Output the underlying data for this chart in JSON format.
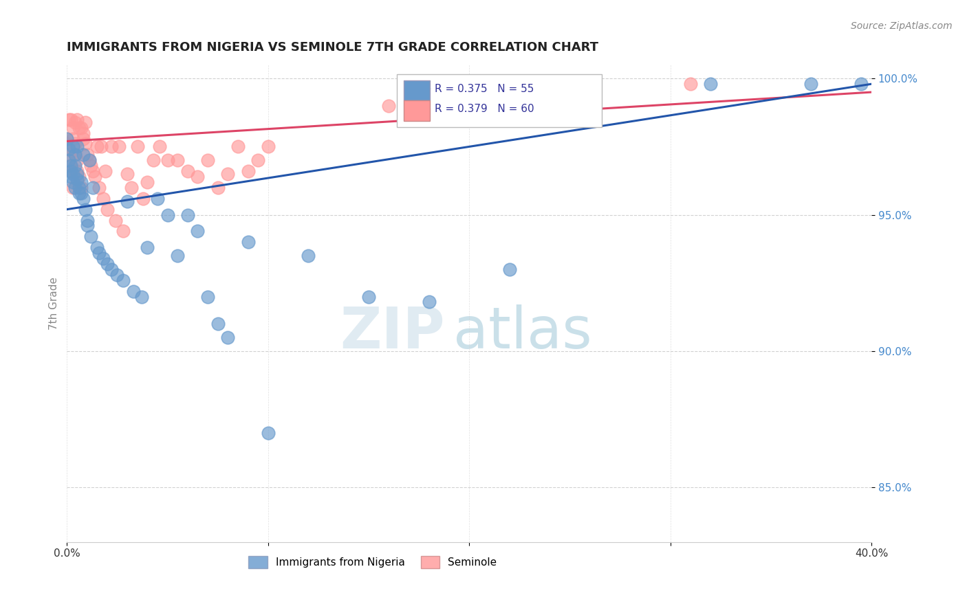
{
  "title": "IMMIGRANTS FROM NIGERIA VS SEMINOLE 7TH GRADE CORRELATION CHART",
  "source": "Source: ZipAtlas.com",
  "ylabel": "7th Grade",
  "legend_blue": "R = 0.375   N = 55",
  "legend_pink": "R = 0.379   N = 60",
  "legend_label_blue": "Immigrants from Nigeria",
  "legend_label_pink": "Seminole",
  "blue_color": "#6699CC",
  "pink_color": "#FF9999",
  "line_blue": "#2255AA",
  "line_pink": "#DD4466",
  "blue_x": [
    0.0,
    0.001,
    0.001,
    0.002,
    0.002,
    0.002,
    0.003,
    0.003,
    0.003,
    0.004,
    0.004,
    0.004,
    0.005,
    0.005,
    0.005,
    0.006,
    0.006,
    0.007,
    0.007,
    0.008,
    0.008,
    0.009,
    0.01,
    0.01,
    0.011,
    0.012,
    0.013,
    0.015,
    0.016,
    0.018,
    0.02,
    0.022,
    0.025,
    0.028,
    0.03,
    0.033,
    0.037,
    0.04,
    0.045,
    0.05,
    0.055,
    0.06,
    0.065,
    0.07,
    0.075,
    0.08,
    0.09,
    0.1,
    0.12,
    0.15,
    0.18,
    0.22,
    0.32,
    0.37,
    0.395
  ],
  "blue_y": [
    0.978,
    0.974,
    0.97,
    0.968,
    0.966,
    0.964,
    0.975,
    0.965,
    0.962,
    0.96,
    0.972,
    0.968,
    0.965,
    0.963,
    0.975,
    0.96,
    0.958,
    0.962,
    0.958,
    0.956,
    0.972,
    0.952,
    0.948,
    0.946,
    0.97,
    0.942,
    0.96,
    0.938,
    0.936,
    0.934,
    0.932,
    0.93,
    0.928,
    0.926,
    0.955,
    0.922,
    0.92,
    0.938,
    0.956,
    0.95,
    0.935,
    0.95,
    0.944,
    0.92,
    0.91,
    0.905,
    0.94,
    0.87,
    0.935,
    0.92,
    0.918,
    0.93,
    0.998,
    0.998,
    0.998
  ],
  "pink_x": [
    0.0,
    0.0,
    0.001,
    0.001,
    0.001,
    0.002,
    0.002,
    0.002,
    0.003,
    0.003,
    0.003,
    0.004,
    0.004,
    0.004,
    0.005,
    0.005,
    0.005,
    0.006,
    0.006,
    0.007,
    0.007,
    0.008,
    0.008,
    0.009,
    0.009,
    0.01,
    0.011,
    0.012,
    0.013,
    0.014,
    0.015,
    0.016,
    0.017,
    0.018,
    0.019,
    0.02,
    0.022,
    0.024,
    0.026,
    0.028,
    0.03,
    0.032,
    0.035,
    0.038,
    0.04,
    0.043,
    0.046,
    0.05,
    0.055,
    0.06,
    0.065,
    0.07,
    0.075,
    0.08,
    0.085,
    0.09,
    0.095,
    0.1,
    0.16,
    0.31
  ],
  "pink_y": [
    0.978,
    0.976,
    0.974,
    0.985,
    0.972,
    0.968,
    0.985,
    0.966,
    0.982,
    0.96,
    0.978,
    0.976,
    0.984,
    0.972,
    0.97,
    0.985,
    0.966,
    0.964,
    0.982,
    0.96,
    0.982,
    0.98,
    0.978,
    0.976,
    0.984,
    0.972,
    0.97,
    0.968,
    0.966,
    0.964,
    0.975,
    0.96,
    0.975,
    0.956,
    0.966,
    0.952,
    0.975,
    0.948,
    0.975,
    0.944,
    0.965,
    0.96,
    0.975,
    0.956,
    0.962,
    0.97,
    0.975,
    0.97,
    0.97,
    0.966,
    0.964,
    0.97,
    0.96,
    0.965,
    0.975,
    0.966,
    0.97,
    0.975,
    0.99,
    0.998
  ],
  "blue_line_x": [
    0.0,
    0.4
  ],
  "blue_line_y": [
    0.952,
    0.998
  ],
  "pink_line_x": [
    0.0,
    0.4
  ],
  "pink_line_y": [
    0.977,
    0.995
  ],
  "xlim": [
    0.0,
    0.4
  ],
  "ylim": [
    0.83,
    1.005
  ],
  "xticks": [
    0.0,
    0.1,
    0.2,
    0.3,
    0.4
  ],
  "xticklabels": [
    "0.0%",
    "",
    "",
    "",
    "40.0%"
  ],
  "yticks": [
    0.85,
    0.9,
    0.95,
    1.0
  ],
  "yticklabels": [
    "85.0%",
    "90.0%",
    "95.0%",
    "100.0%"
  ],
  "watermark_zip": "ZIP",
  "watermark_atlas": "atlas",
  "background_color": "#ffffff"
}
